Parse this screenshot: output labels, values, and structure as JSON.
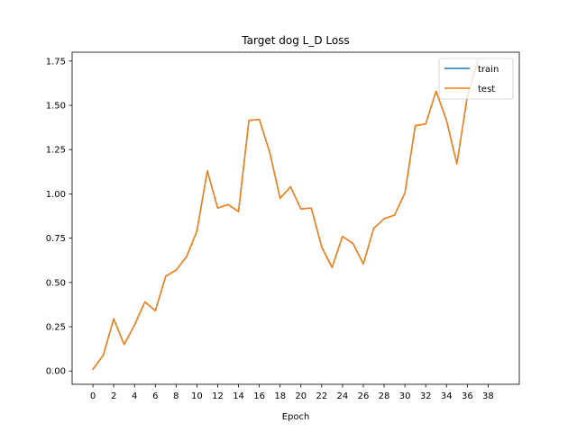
{
  "chart_data": {
    "type": "line",
    "title": "Target dog L_D Loss",
    "xlabel": "Epoch",
    "ylabel": "",
    "xlim": [
      -2.0,
      41.0
    ],
    "ylim": [
      -0.075,
      1.8
    ],
    "xticks": [
      0,
      2,
      4,
      6,
      8,
      10,
      12,
      14,
      16,
      18,
      20,
      22,
      24,
      26,
      28,
      30,
      32,
      34,
      36,
      38
    ],
    "xtick_labels": [
      "0",
      "2",
      "4",
      "6",
      "8",
      "10",
      "12",
      "14",
      "16",
      "18",
      "20",
      "22",
      "24",
      "26",
      "28",
      "30",
      "32",
      "34",
      "36",
      "38"
    ],
    "yticks": [
      0.0,
      0.25,
      0.5,
      0.75,
      1.0,
      1.25,
      1.5,
      1.75
    ],
    "ytick_labels": [
      "0.00",
      "0.25",
      "0.50",
      "0.75",
      "1.00",
      "1.25",
      "1.50",
      "1.75"
    ],
    "grid": false,
    "legend_position": "top-right",
    "x": [
      0,
      1,
      2,
      3,
      4,
      5,
      6,
      7,
      8,
      9,
      10,
      11,
      12,
      13,
      14,
      15,
      16,
      17,
      18,
      19,
      20,
      21,
      22,
      23,
      24,
      25,
      26,
      27,
      28,
      29,
      30,
      31,
      32,
      33,
      34,
      35,
      36,
      37
    ],
    "series": [
      {
        "name": "train",
        "color": "#1f77b4",
        "values": [
          0.01,
          0.09,
          0.295,
          0.15,
          0.26,
          0.39,
          0.34,
          0.535,
          0.57,
          0.645,
          0.79,
          1.13,
          0.92,
          0.94,
          0.9,
          1.415,
          1.42,
          1.235,
          0.975,
          1.04,
          0.915,
          0.92,
          0.7,
          0.585,
          0.76,
          0.72,
          0.605,
          0.805,
          0.86,
          0.88,
          1.005,
          1.385,
          1.395,
          1.58,
          1.415,
          1.17,
          1.55,
          1.75
        ]
      },
      {
        "name": "test",
        "color": "#ff7f0e",
        "values": [
          0.01,
          0.09,
          0.295,
          0.15,
          0.26,
          0.39,
          0.34,
          0.535,
          0.57,
          0.645,
          0.79,
          1.13,
          0.92,
          0.94,
          0.9,
          1.415,
          1.42,
          1.235,
          0.975,
          1.04,
          0.915,
          0.92,
          0.7,
          0.585,
          0.76,
          0.72,
          0.605,
          0.805,
          0.86,
          0.88,
          1.005,
          1.385,
          1.395,
          1.58,
          1.415,
          1.17,
          1.55,
          1.75
        ]
      }
    ]
  }
}
